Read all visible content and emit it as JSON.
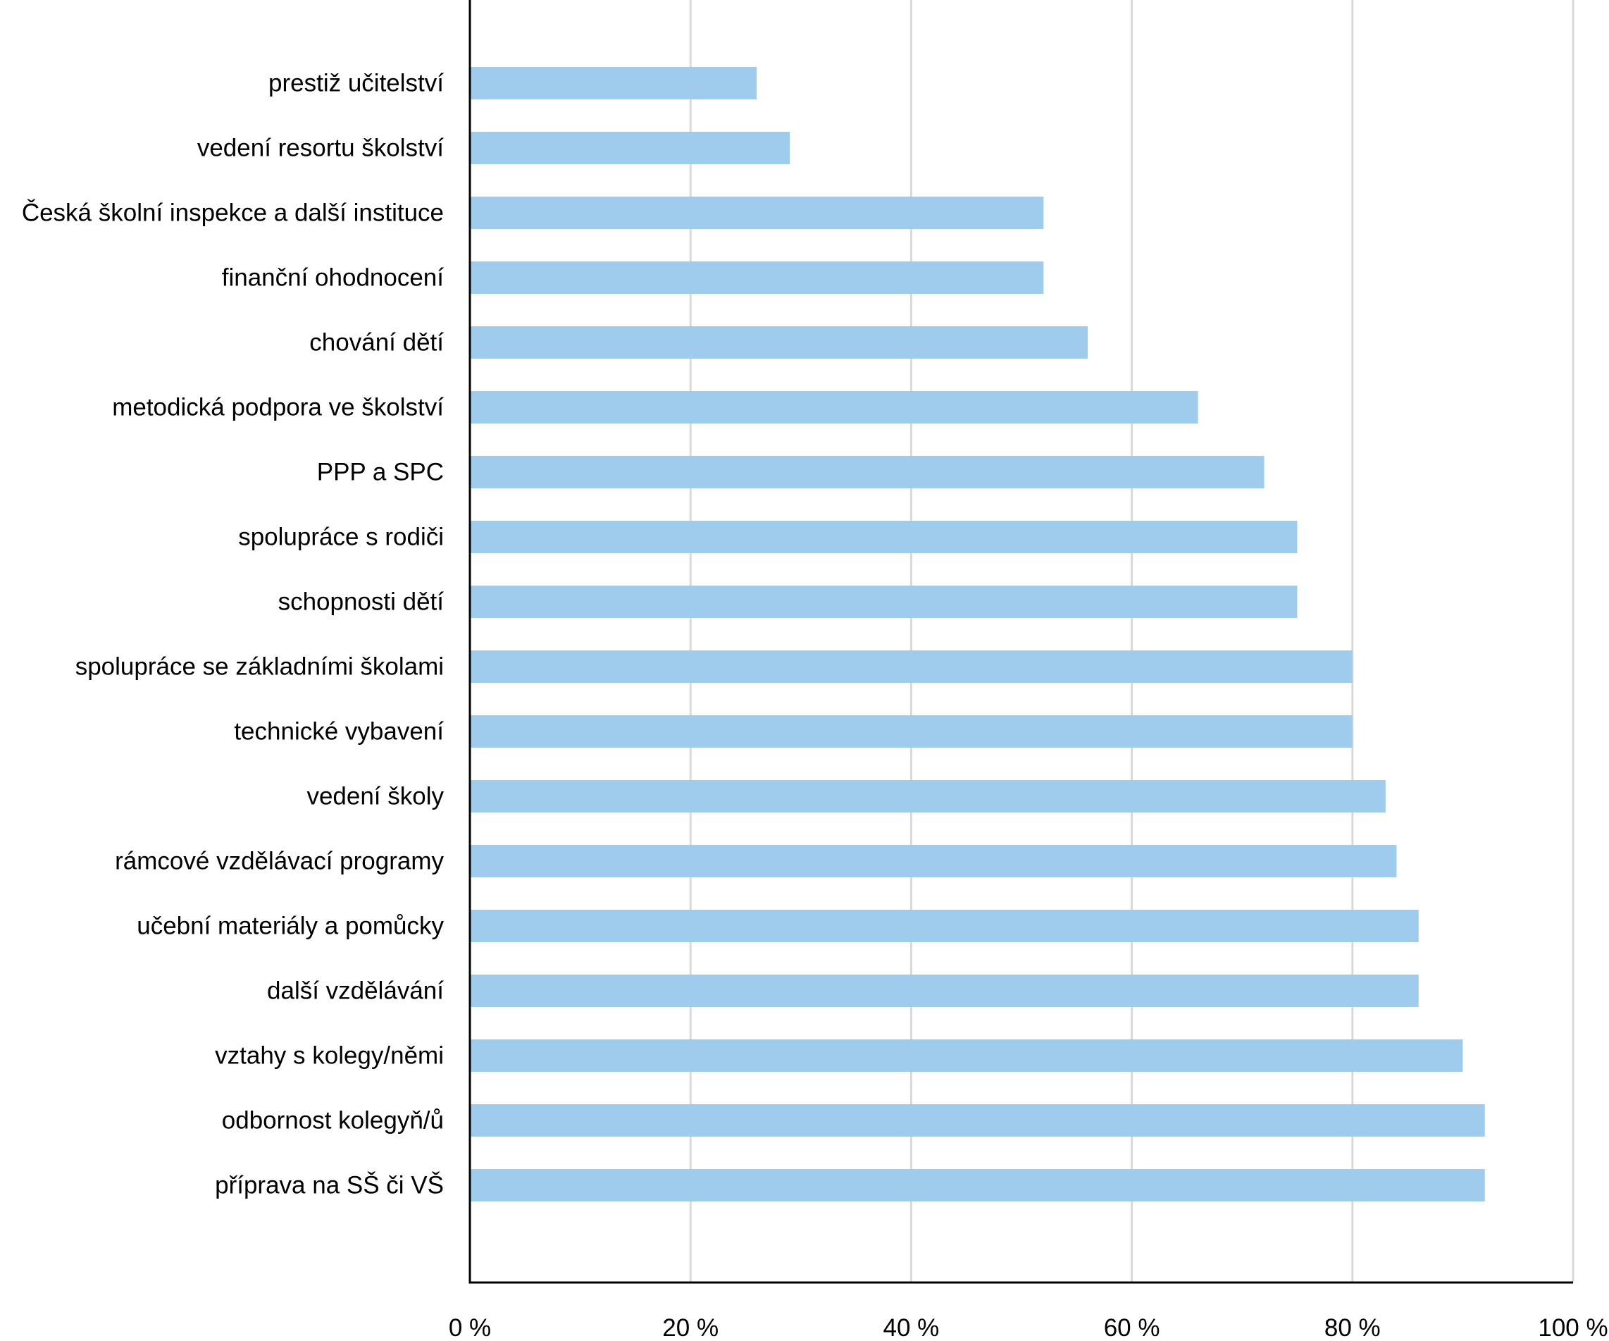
{
  "chart_data": {
    "type": "bar",
    "orientation": "horizontal",
    "title": "",
    "xlabel": "",
    "ylabel": "",
    "xlim": [
      0,
      100
    ],
    "x_ticks": [
      0,
      20,
      40,
      60,
      80,
      100
    ],
    "x_tick_labels": [
      "0 %",
      "20 %",
      "40 %",
      "60 %",
      "80 %",
      "100 %"
    ],
    "grid": "vertical",
    "bar_color": "#9fcbed",
    "categories": [
      "prestiž učitelství",
      "vedení resortu školství",
      "Česká školní inspekce a další instituce",
      "finanční ohodnocení",
      "chování dětí",
      "metodická podpora ve školství",
      "PPP a SPC",
      "spolupráce s rodiči",
      "schopnosti dětí",
      "spolupráce se základními školami",
      "technické vybavení",
      "vedení školy",
      "rámcové vzdělávací programy",
      "učební materiály a pomůcky",
      "další vzdělávání",
      "vztahy s kolegy/němi",
      "odbornost kolegyň/ů",
      "příprava na SŠ či VŠ"
    ],
    "values": [
      26,
      29,
      52,
      52,
      56,
      66,
      72,
      75,
      75,
      80,
      80,
      83,
      84,
      86,
      86,
      90,
      92,
      92
    ]
  }
}
